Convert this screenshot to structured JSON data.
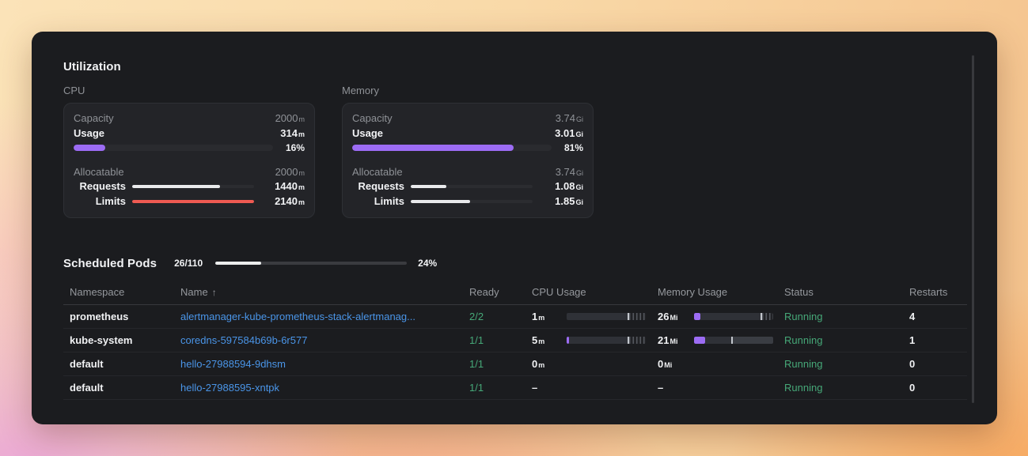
{
  "colors": {
    "purple": "#9c6cf4",
    "red": "#ef5a52",
    "green": "#46a878",
    "link_blue": "#4a95e8",
    "bar_white": "#e9eaec"
  },
  "utilization": {
    "title": "Utilization",
    "cards": [
      {
        "label": "CPU",
        "capacity_label": "Capacity",
        "capacity_value": "2000",
        "capacity_unit": "m",
        "usage_label": "Usage",
        "usage_value": "314",
        "usage_unit": "m",
        "usage_pct": 16,
        "usage_pct_label": "16%",
        "usage_fill_color": "#9c6cf4",
        "allocatable_label": "Allocatable",
        "allocatable_value": "2000",
        "allocatable_unit": "m",
        "requests_label": "Requests",
        "requests_value": "1440",
        "requests_unit": "m",
        "requests_pct": 72,
        "requests_color": "#e9eaec",
        "limits_label": "Limits",
        "limits_value": "2140",
        "limits_unit": "m",
        "limits_pct": 100,
        "limits_color": "#ef5a52"
      },
      {
        "label": "Memory",
        "capacity_label": "Capacity",
        "capacity_value": "3.74",
        "capacity_unit": "Gi",
        "usage_label": "Usage",
        "usage_value": "3.01",
        "usage_unit": "Gi",
        "usage_pct": 81,
        "usage_pct_label": "81%",
        "usage_fill_color": "#9c6cf4",
        "allocatable_label": "Allocatable",
        "allocatable_value": "3.74",
        "allocatable_unit": "Gi",
        "requests_label": "Requests",
        "requests_value": "1.08",
        "requests_unit": "Gi",
        "requests_pct": 29,
        "requests_color": "#e9eaec",
        "limits_label": "Limits",
        "limits_value": "1.85",
        "limits_unit": "Gi",
        "limits_pct": 49,
        "limits_color": "#e9eaec"
      }
    ]
  },
  "scheduled_pods": {
    "title": "Scheduled Pods",
    "count": "26/110",
    "pct": 24,
    "pct_label": "24%"
  },
  "pods_table": {
    "columns": [
      {
        "label": "Namespace"
      },
      {
        "label": "Name",
        "sort_arrow": "↑"
      },
      {
        "label": "Ready"
      },
      {
        "label": "CPU Usage"
      },
      {
        "label": "Memory Usage"
      },
      {
        "label": "Status"
      },
      {
        "label": "Restarts"
      }
    ],
    "rows": [
      {
        "namespace": "prometheus",
        "name": "alertmanager-kube-prometheus-stack-alertmanag...",
        "ready": "2/2",
        "cpu": {
          "value": "1",
          "unit": "m",
          "bar": {
            "usage_pct": 0,
            "base_pct": 77,
            "tail_pct": 21,
            "tail_style": "hatch"
          }
        },
        "mem": {
          "value": "26",
          "unit": "Mi",
          "bar": {
            "usage_pct": 8,
            "base_pct": 76,
            "tail_pct": 14,
            "tail_style": "hatch"
          }
        },
        "status": "Running",
        "restarts": "4"
      },
      {
        "namespace": "kube-system",
        "name": "coredns-597584b69b-6r577",
        "ready": "1/1",
        "cpu": {
          "value": "5",
          "unit": "m",
          "bar": {
            "usage_pct": 3,
            "base_pct": 74,
            "tail_pct": 21,
            "tail_style": "hatch"
          }
        },
        "mem": {
          "value": "21",
          "unit": "Mi",
          "bar": {
            "usage_pct": 14,
            "base_pct": 33,
            "tail_pct": 51,
            "tail_style": "solid"
          }
        },
        "status": "Running",
        "restarts": "1"
      },
      {
        "namespace": "default",
        "name": "hello-27988594-9dhsm",
        "ready": "1/1",
        "cpu": {
          "value": "0",
          "unit": "m"
        },
        "mem": {
          "value": "0",
          "unit": "Mi"
        },
        "status": "Running",
        "restarts": "0"
      },
      {
        "namespace": "default",
        "name": "hello-27988595-xntpk",
        "ready": "1/1",
        "cpu": {
          "value": "–",
          "unit": ""
        },
        "mem": {
          "value": "–",
          "unit": ""
        },
        "status": "Running",
        "restarts": "0"
      }
    ]
  }
}
